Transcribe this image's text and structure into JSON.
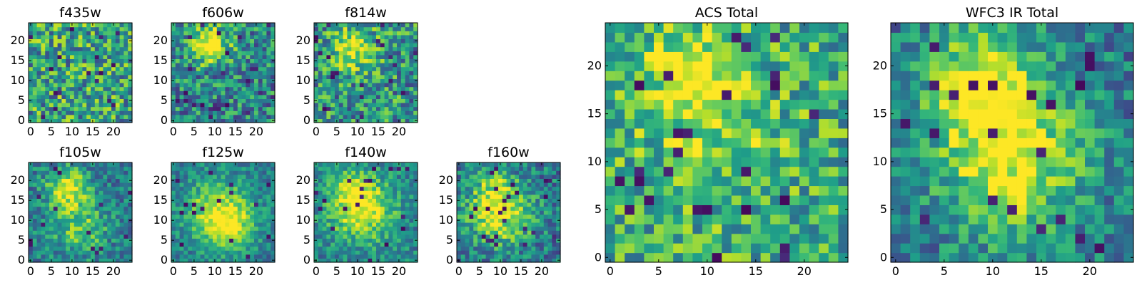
{
  "figure": {
    "colormap": "viridis",
    "colors": {
      "low": "#440154",
      "mid": "#21918c",
      "high": "#fde725"
    }
  },
  "chart_data": [
    {
      "type": "heatmap",
      "title": "f435w",
      "grid": [
        25,
        25
      ],
      "xlim": [
        0,
        24
      ],
      "ylim": [
        0,
        24
      ],
      "xticks": [
        "0",
        "5",
        "10",
        "15",
        "20"
      ],
      "yticks": [
        "0",
        "5",
        "10",
        "15",
        "20"
      ],
      "structure": "noisy, no clear source"
    },
    {
      "type": "heatmap",
      "title": "f606w",
      "grid": [
        25,
        25
      ],
      "xlim": [
        0,
        24
      ],
      "ylim": [
        0,
        24
      ],
      "xticks": [
        "0",
        "5",
        "10",
        "15",
        "20"
      ],
      "yticks": [
        "0",
        "5",
        "10",
        "15",
        "20"
      ],
      "structure": "faint blob near (9,19)"
    },
    {
      "type": "heatmap",
      "title": "f814w",
      "grid": [
        25,
        25
      ],
      "xlim": [
        0,
        24
      ],
      "ylim": [
        0,
        24
      ],
      "xticks": [
        "0",
        "5",
        "10",
        "15",
        "20"
      ],
      "yticks": [
        "0",
        "5",
        "10",
        "15",
        "20"
      ],
      "structure": "faint blob near (9,18)"
    },
    {
      "type": "heatmap",
      "title": "f105w",
      "grid": [
        25,
        25
      ],
      "xlim": [
        0,
        24
      ],
      "ylim": [
        0,
        24
      ],
      "xticks": [
        "0",
        "5",
        "10",
        "15",
        "20"
      ],
      "yticks": [
        "0",
        "5",
        "10",
        "15",
        "20"
      ],
      "structure": "bright near (9,18) extending down"
    },
    {
      "type": "heatmap",
      "title": "f125w",
      "grid": [
        25,
        25
      ],
      "xlim": [
        0,
        24
      ],
      "ylim": [
        0,
        24
      ],
      "xticks": [
        "0",
        "5",
        "10",
        "15",
        "20"
      ],
      "yticks": [
        "0",
        "5",
        "10",
        "15",
        "20"
      ],
      "structure": "extended source"
    },
    {
      "type": "heatmap",
      "title": "f140w",
      "grid": [
        25,
        25
      ],
      "xlim": [
        0,
        24
      ],
      "ylim": [
        0,
        24
      ],
      "xticks": [
        "0",
        "5",
        "10",
        "15",
        "20"
      ],
      "yticks": [
        "0",
        "5",
        "10",
        "15",
        "20"
      ],
      "structure": "extended source"
    },
    {
      "type": "heatmap",
      "title": "f160w",
      "grid": [
        25,
        25
      ],
      "xlim": [
        0,
        24
      ],
      "ylim": [
        0,
        24
      ],
      "xticks": [
        "0",
        "5",
        "10",
        "15",
        "20"
      ],
      "yticks": [
        "0",
        "5",
        "10",
        "15",
        "20"
      ],
      "structure": "extended source"
    },
    {
      "type": "heatmap",
      "title": "ACS Total",
      "grid": [
        25,
        25
      ],
      "xlim": [
        0,
        24
      ],
      "ylim": [
        0,
        24
      ],
      "xticks": [
        "0",
        "5",
        "10",
        "15",
        "20"
      ],
      "yticks": [
        "0",
        "5",
        "10",
        "15",
        "20"
      ],
      "structure": "bright blob near (9,19)"
    },
    {
      "type": "heatmap",
      "title": "WFC3 IR Total",
      "grid": [
        25,
        25
      ],
      "xlim": [
        0,
        24
      ],
      "ylim": [
        0,
        24
      ],
      "xticks": [
        "0",
        "5",
        "10",
        "15",
        "20"
      ],
      "yticks": [
        "0",
        "5",
        "10",
        "15",
        "20"
      ],
      "structure": "bright extended source near (9,18)"
    }
  ]
}
